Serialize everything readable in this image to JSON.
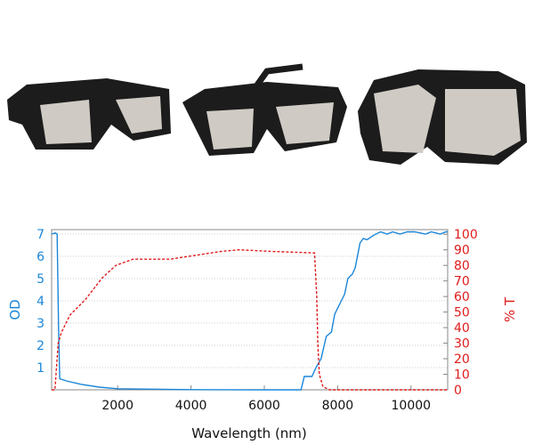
{
  "products": [
    {
      "name": "wraparound glasses"
    },
    {
      "name": "fitover glasses"
    },
    {
      "name": "goggles"
    }
  ],
  "colors": {
    "od": "#1a86d8",
    "transmission": "#e01b1b",
    "frame": "#1c1c1c",
    "lens": "#cfcbc4"
  },
  "chart_data": {
    "type": "line",
    "title": "",
    "xlabel": "Wavelength (nm)",
    "ylabel": "OD",
    "y2label": "% T",
    "xlim": [
      200,
      11000
    ],
    "ylim": [
      0,
      7.2
    ],
    "y2lim": [
      0,
      103
    ],
    "xticks": [
      2000,
      4000,
      6000,
      8000,
      10000
    ],
    "yticks": [
      1,
      2,
      3,
      4,
      5,
      6,
      7
    ],
    "y2ticks": [
      0,
      10,
      20,
      30,
      40,
      50,
      60,
      70,
      80,
      90,
      100
    ],
    "grid": "horizontal dotted",
    "series": [
      {
        "axis": "left",
        "style": "solid",
        "x": [
          200,
          300,
          350,
          390,
          420,
          600,
          1000,
          1500,
          2000,
          3000,
          4000,
          6000,
          7000,
          7090,
          7300,
          7410,
          7550,
          7690,
          7830,
          7920,
          8100,
          8190,
          8280,
          8400,
          8480,
          8610,
          8700,
          8800,
          8980,
          9170,
          9350,
          9500,
          9700,
          9900,
          10100,
          10400,
          10550,
          10800,
          10950,
          11000
        ],
        "y": [
          7.0,
          7.05,
          7.0,
          2.8,
          0.5,
          0.4,
          0.25,
          0.12,
          0.05,
          0.03,
          0.01,
          0,
          0,
          0.6,
          0.6,
          1.0,
          1.4,
          2.4,
          2.6,
          3.4,
          4.0,
          4.3,
          5.0,
          5.2,
          5.5,
          6.6,
          6.8,
          6.75,
          6.95,
          7.1,
          7.0,
          7.1,
          7.0,
          7.1,
          7.1,
          7.0,
          7.1,
          7.0,
          7.1,
          7.1
        ]
      },
      {
        "axis": "right",
        "style": "dashed",
        "x": [
          200,
          290,
          380,
          470,
          700,
          1120,
          1580,
          1950,
          2420,
          3430,
          3990,
          4820,
          5300,
          6210,
          7370,
          7430,
          7460,
          7500,
          7600,
          7780,
          11000
        ],
        "y": [
          0,
          0,
          30,
          37,
          48,
          58,
          72,
          80,
          84,
          84,
          86,
          89,
          90,
          89,
          88,
          60,
          30,
          10,
          2,
          0,
          0
        ]
      }
    ]
  }
}
